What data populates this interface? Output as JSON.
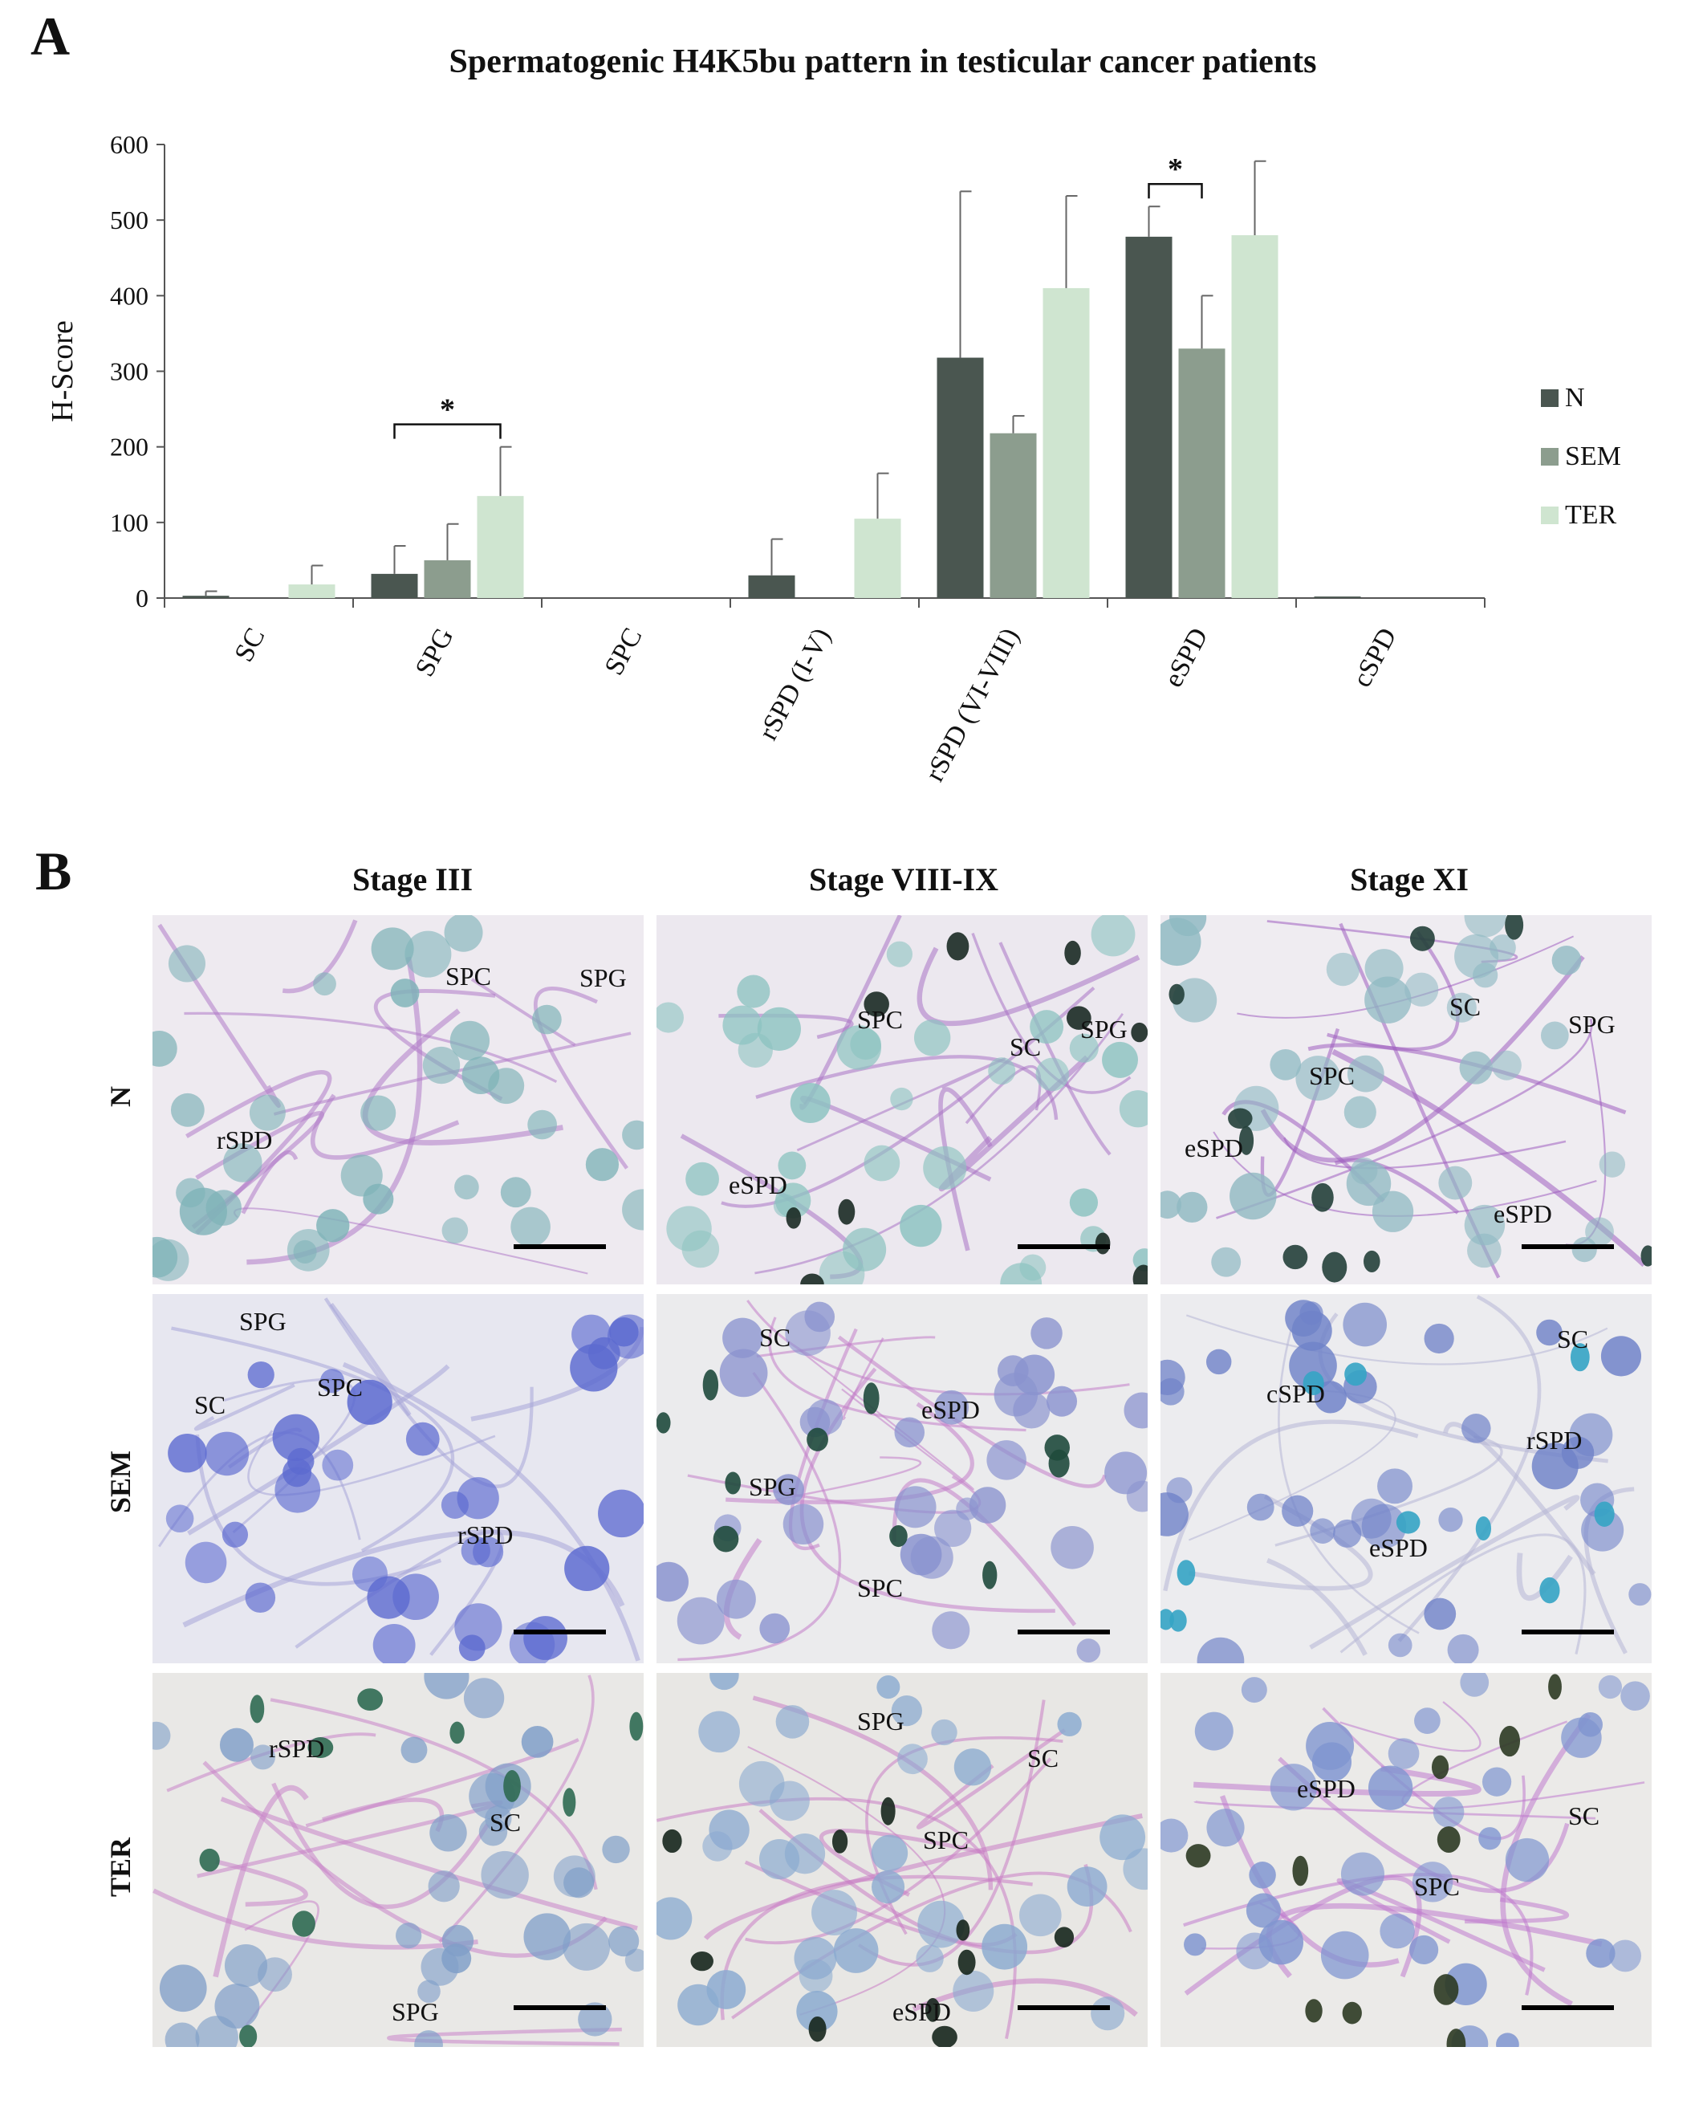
{
  "panel_labels": {
    "a": "A",
    "b": "B"
  },
  "chart_data": {
    "type": "bar",
    "title": "Spermatogenic H4K5bu pattern in testicular cancer patients",
    "ylabel": "H-Score",
    "xlabel": "",
    "ylim": [
      0,
      600
    ],
    "yticks": [
      0,
      100,
      200,
      300,
      400,
      500,
      600
    ],
    "categories": [
      "SC",
      "SPG",
      "SPC",
      "rSPD (I-V)",
      "rSPD (VI-VIII)",
      "eSPD",
      "cSPD"
    ],
    "series": [
      {
        "name": "N",
        "color": "#4a5650",
        "values": [
          3,
          32,
          0,
          30,
          318,
          478,
          2
        ],
        "errors": [
          6,
          37,
          0,
          48,
          220,
          40,
          0
        ]
      },
      {
        "name": "SEM",
        "color": "#8c9d8e",
        "values": [
          0,
          50,
          0,
          0,
          218,
          330,
          0
        ],
        "errors": [
          0,
          48,
          0,
          0,
          23,
          70,
          0
        ]
      },
      {
        "name": "TER",
        "color": "#cfe5d0",
        "values": [
          18,
          135,
          0,
          105,
          410,
          480,
          0
        ],
        "errors": [
          25,
          65,
          0,
          60,
          122,
          98,
          0
        ]
      }
    ],
    "significance": [
      {
        "category": "SPG",
        "between": [
          "N",
          "TER"
        ],
        "label": "*"
      },
      {
        "category": "eSPD",
        "between": [
          "N",
          "SEM"
        ],
        "label": "*"
      }
    ],
    "legend_position": "right",
    "grid": false
  },
  "micrographs": {
    "columns": [
      "Stage III",
      "Stage VIII-IX",
      "Stage XI"
    ],
    "rows": [
      "N",
      "SEM",
      "TER"
    ],
    "panels": [
      {
        "row": "N",
        "col": "Stage III",
        "labels": [
          "SPC",
          "SPG",
          "rSPD"
        ]
      },
      {
        "row": "N",
        "col": "Stage VIII-IX",
        "labels": [
          "SPC",
          "SC",
          "SPG",
          "eSPD"
        ]
      },
      {
        "row": "N",
        "col": "Stage XI",
        "labels": [
          "SC",
          "SPG",
          "SPC",
          "eSPD",
          "eSPD"
        ]
      },
      {
        "row": "SEM",
        "col": "Stage III",
        "labels": [
          "SPG",
          "SPC",
          "SC",
          "rSPD"
        ]
      },
      {
        "row": "SEM",
        "col": "Stage VIII-IX",
        "labels": [
          "SC",
          "eSPD",
          "SPG",
          "SPC"
        ]
      },
      {
        "row": "SEM",
        "col": "Stage XI",
        "labels": [
          "SC",
          "cSPD",
          "rSPD",
          "eSPD"
        ]
      },
      {
        "row": "TER",
        "col": "Stage III",
        "labels": [
          "rSPD",
          "SC",
          "SPG"
        ]
      },
      {
        "row": "TER",
        "col": "Stage VIII-IX",
        "labels": [
          "SPG",
          "SC",
          "SPC",
          "eSPD"
        ]
      },
      {
        "row": "TER",
        "col": "Stage XI",
        "labels": [
          "eSPD",
          "SC",
          "SPC"
        ]
      }
    ]
  }
}
